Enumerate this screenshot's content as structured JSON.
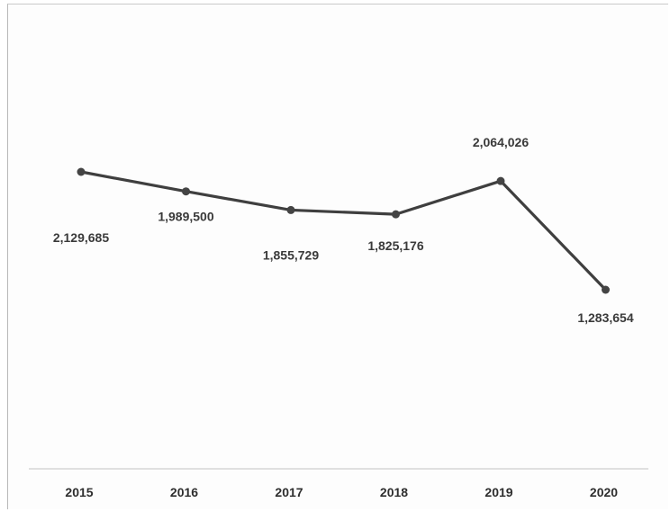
{
  "chart_data": {
    "type": "line",
    "categories": [
      "2015",
      "2016",
      "2017",
      "2018",
      "2019",
      "2020"
    ],
    "values": [
      2129685,
      1989500,
      1855729,
      1825176,
      2064026,
      1283654
    ],
    "value_labels": [
      "2,129,685",
      "1,989,500",
      "1,855,729",
      "1,825,176",
      "2,064,026",
      "1,283,654"
    ],
    "title": "",
    "xlabel": "",
    "ylabel": "",
    "grid": false,
    "legend": "none",
    "line_color": "#3f3f3f",
    "marker_color": "#444444"
  }
}
